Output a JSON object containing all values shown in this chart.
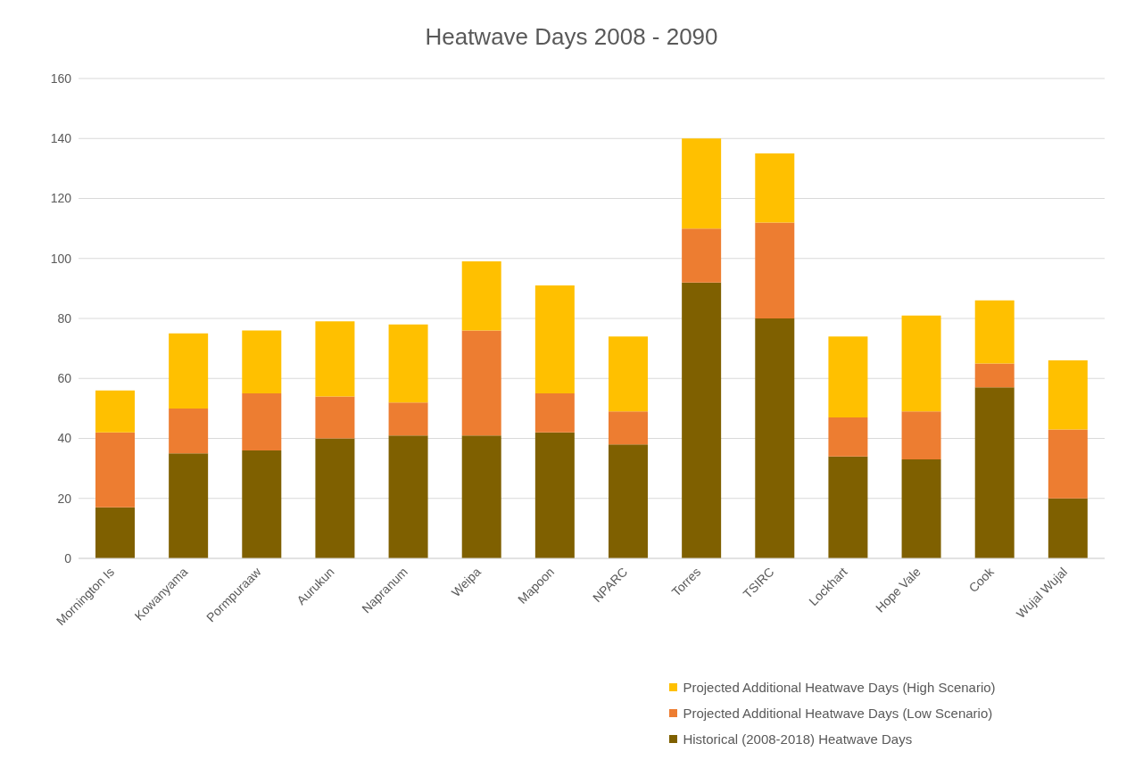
{
  "chart_data": {
    "type": "bar",
    "title": "Heatwave Days 2008 - 2090",
    "stacked": true,
    "categories": [
      "Mornington Is",
      "Kowanyama",
      "Pormpuraaw",
      "Aurukun",
      "Napranum",
      "Weipa",
      "Mapoon",
      "NPARC",
      "Torres",
      "TSIRC",
      "Lockhart",
      "Hope Vale",
      "Cook",
      "Wujal Wujal"
    ],
    "series": [
      {
        "name": "Historical (2008-2018) Heatwave Days",
        "color": "#7f6000",
        "values": [
          17,
          35,
          36,
          40,
          41,
          41,
          42,
          38,
          92,
          80,
          34,
          33,
          57,
          20
        ]
      },
      {
        "name": "Projected Additional Heatwave Days (Low Scenario)",
        "color": "#ed7d31",
        "values": [
          25,
          15,
          19,
          14,
          11,
          35,
          13,
          11,
          18,
          32,
          13,
          16,
          8,
          23
        ]
      },
      {
        "name": "Projected Additional Heatwave Days (High Scenario)",
        "color": "#ffc000",
        "values": [
          14,
          25,
          21,
          25,
          26,
          23,
          36,
          25,
          30,
          23,
          27,
          32,
          21,
          23
        ]
      }
    ],
    "ylim": [
      0,
      160
    ],
    "yticks": [
      0,
      20,
      40,
      60,
      80,
      100,
      120,
      140,
      160
    ],
    "grid": "y",
    "legend": "bottom"
  }
}
